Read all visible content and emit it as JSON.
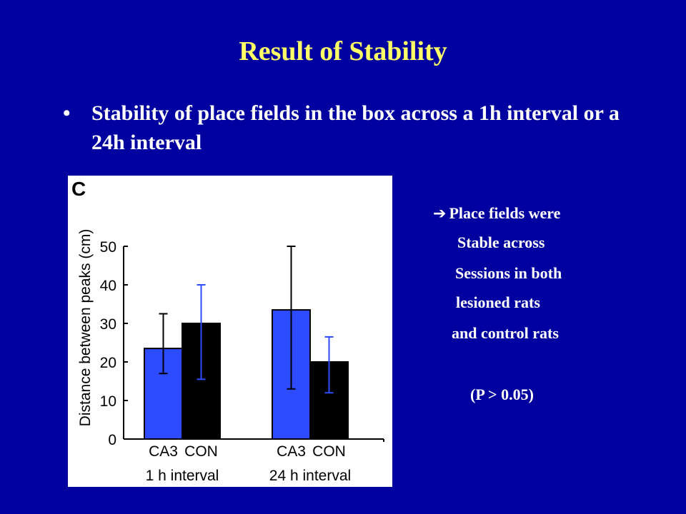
{
  "slide": {
    "title": "Result of Stability",
    "bullet_marker": "•",
    "bullet_text": "Stability of place fields in the box across a 1h interval or a 24h interval"
  },
  "panel": {
    "panel_letter": "C"
  },
  "notes": {
    "arrow_icon": "right-arrow-icon",
    "arrow_glyph": "➔",
    "line1": "Place fields were",
    "line2": "Stable across",
    "line3": "Sessions in both",
    "line4": "lesioned rats",
    "line5": "and control rats",
    "pvalue": "(P > 0.05)"
  },
  "colors": {
    "background": "#0000a0",
    "title": "#ffff66",
    "ca3_bar": "#2d4bff",
    "con_bar": "#000000"
  },
  "chart_data": {
    "type": "bar",
    "title": "",
    "ylabel": "Distance between peaks (cm)",
    "xlabel": "",
    "ylim": [
      0,
      50
    ],
    "yticks": [
      0,
      10,
      20,
      30,
      40,
      50
    ],
    "groups": [
      "1 h interval",
      "24 h interval"
    ],
    "categories": [
      "CA3",
      "CON"
    ],
    "series": [
      {
        "group": "1 h interval",
        "bars": [
          {
            "label": "CA3",
            "value": 23.5,
            "err_low": 17,
            "err_high": 32.5,
            "color": "#2d4bff",
            "errColor": "#000000"
          },
          {
            "label": "CON",
            "value": 30,
            "err_low": 15.5,
            "err_high": 40,
            "color": "#000000",
            "errColor": "#2d4bff"
          }
        ]
      },
      {
        "group": "24 h interval",
        "bars": [
          {
            "label": "CA3",
            "value": 33.5,
            "err_low": 13,
            "err_high": 50,
            "color": "#2d4bff",
            "errColor": "#000000"
          },
          {
            "label": "CON",
            "value": 20,
            "err_low": 12,
            "err_high": 26.5,
            "color": "#000000",
            "errColor": "#2d4bff"
          }
        ]
      }
    ],
    "legend": "none",
    "grid": false
  }
}
